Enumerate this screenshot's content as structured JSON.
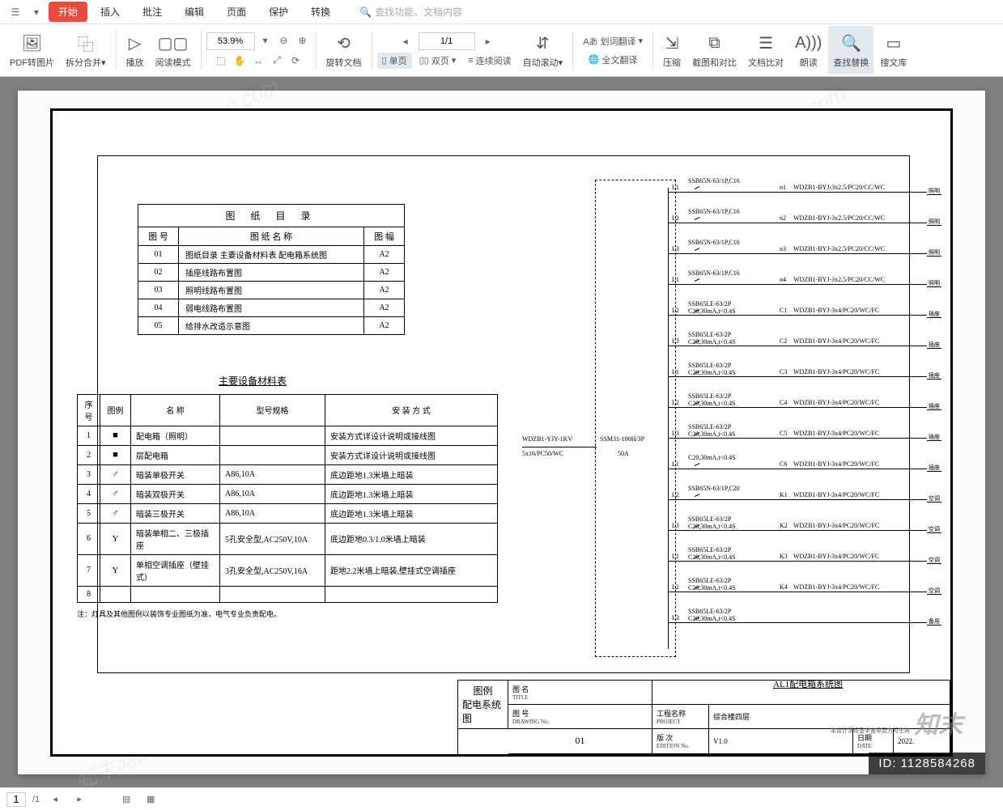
{
  "menubar": {
    "tabs": [
      "开始",
      "插入",
      "批注",
      "编辑",
      "页面",
      "保护",
      "转换"
    ],
    "active_index": 0,
    "search_placeholder": "查找功能、文档内容"
  },
  "toolbar": {
    "pdf_to_image": "PDF转图片",
    "split_merge": "拆分合并",
    "play": "播放",
    "read_mode": "阅读模式",
    "zoom_value": "53.9%",
    "page_indicator": "1/1",
    "rotate": "旋转文档",
    "single_page": "单页",
    "double_page": "双页",
    "continuous": "连续阅读",
    "auto_scroll": "自动滚动",
    "word_translate": "划词翻译",
    "full_translate": "全文翻译",
    "compress": "压缩",
    "screenshot_compare": "截图和对比",
    "text_compare": "文档比对",
    "read_aloud": "朗读",
    "find_replace": "查找替换",
    "doc_library": "搜文库"
  },
  "drawing_index": {
    "title": "图 纸 目 录",
    "headers": {
      "no": "图 号",
      "name": "图 纸 名 称",
      "size": "图 幅"
    },
    "rows": [
      {
        "no": "01",
        "name": "图纸目录 主要设备材料表 配电箱系统图",
        "size": "A2"
      },
      {
        "no": "02",
        "name": "插座线路布置图",
        "size": "A2"
      },
      {
        "no": "03",
        "name": "照明线路布置图",
        "size": "A2"
      },
      {
        "no": "04",
        "name": "弱电线路布置图",
        "size": "A2"
      },
      {
        "no": "05",
        "name": "给排水改造示意图",
        "size": "A2"
      }
    ]
  },
  "equipment": {
    "title": "主要设备材料表",
    "headers": {
      "seq": "序号",
      "legend": "图例",
      "name": "名 称",
      "model": "型号规格",
      "install": "安 装 方 式"
    },
    "rows": [
      {
        "seq": "1",
        "sym": "■",
        "name": "配电箱（照明）",
        "model": "",
        "install": "安装方式详设计说明或接线图"
      },
      {
        "seq": "2",
        "sym": "■",
        "name": "层配电箱",
        "model": "",
        "install": "安装方式详设计说明或接线图"
      },
      {
        "seq": "3",
        "sym": "♂",
        "name": "暗装单极开关",
        "model": "A86,10A",
        "install": "底边距地1.3米墙上暗装"
      },
      {
        "seq": "4",
        "sym": "♂",
        "name": "暗装双极开关",
        "model": "A86,10A",
        "install": "底边距地1.3米墙上暗装"
      },
      {
        "seq": "5",
        "sym": "♂",
        "name": "暗装三极开关",
        "model": "A86,10A",
        "install": "底边距地1.3米墙上暗装"
      },
      {
        "seq": "6",
        "sym": "Y",
        "name": "暗装单相二、三极插座",
        "model": "5孔安全型,AC250V,10A",
        "install": "底边距地0.3/1.0米墙上暗装"
      },
      {
        "seq": "7",
        "sym": "Y",
        "name": "单相空调插座（壁挂式）",
        "model": "3孔安全型,AC250V,16A",
        "install": "距地2.2米墙上暗装,壁挂式空调插座"
      },
      {
        "seq": "8",
        "sym": "",
        "name": "",
        "model": "",
        "install": ""
      }
    ],
    "note": "注：灯具及其他图例以装饰专业图纸为准，电气专业负责配电。"
  },
  "circuit": {
    "feed_top": "WDZB1-YJY-1KV",
    "feed_bottom": "5x16/PC50/WC",
    "main_switch_top": "SSM31-100H/3P",
    "main_switch_bottom": "50A",
    "title": "AL1配电箱系统图",
    "branches": [
      {
        "phase": "L1",
        "breaker": "SSB65N-63/1P,C16",
        "circuit": "n1",
        "cable": "WDZB1-BYJ-3x2.5/PC20/CC/WC",
        "use": "照明"
      },
      {
        "phase": "L2",
        "breaker": "SSB65N-63/1P,C16",
        "circuit": "n2",
        "cable": "WDZB1-BYJ-3x2.5/PC20/CC/WC",
        "use": "照明"
      },
      {
        "phase": "L3",
        "breaker": "SSB65N-63/1P,C16",
        "circuit": "n3",
        "cable": "WDZB1-BYJ-3x2.5/PC20/CC/WC",
        "use": "照明"
      },
      {
        "phase": "L1",
        "breaker": "SSB65N-63/1P,C16",
        "circuit": "n4",
        "cable": "WDZB1-BYJ-3x2.5/PC20/CC/WC",
        "use": "照明"
      },
      {
        "phase": "L2",
        "breaker": "SSB65LE-63/2P C20,30mA,t<0.4S",
        "circuit": "C1",
        "cable": "WDZB1-BYJ-3x4/PC20/WC/FC",
        "use": "插座"
      },
      {
        "phase": "L3",
        "breaker": "SSB65LE-63/2P C20,30mA,t<0.4S",
        "circuit": "C2",
        "cable": "WDZB1-BYJ-3x4/PC20/WC/FC",
        "use": "插座"
      },
      {
        "phase": "L1",
        "breaker": "SSB65LE-63/2P C20,30mA,t<0.4S",
        "circuit": "C3",
        "cable": "WDZB1-BYJ-3x4/PC20/WC/FC",
        "use": "插座"
      },
      {
        "phase": "L2",
        "breaker": "SSB65LE-63/2P C20,30mA,t<0.4S",
        "circuit": "C4",
        "cable": "WDZB1-BYJ-3x4/PC20/WC/FC",
        "use": "插座"
      },
      {
        "phase": "L3",
        "breaker": "SSB65LE-63/2P C20,30mA,t<0.4S",
        "circuit": "C5",
        "cable": "WDZB1-BYJ-3x4/PC20/WC/FC",
        "use": "插座"
      },
      {
        "phase": "L1",
        "breaker": "C20,30mA,t<0.4S",
        "circuit": "C6",
        "cable": "WDZB1-BYJ-3x4/PC20/WC/FC",
        "use": "插座"
      },
      {
        "phase": "L2",
        "breaker": "SSB65N-63/1P,C20",
        "circuit": "K1",
        "cable": "WDZB1-BYJ-3x4/PC20/WC/FC",
        "use": "空调"
      },
      {
        "phase": "L3",
        "breaker": "SSB65LE-63/2P C20,30mA,t<0.4S",
        "circuit": "K2",
        "cable": "WDZB1-BYJ-3x4/PC20/WC/FC",
        "use": "空调"
      },
      {
        "phase": "L1",
        "breaker": "SSB65LE-63/2P C20,30mA,t<0.4S",
        "circuit": "K3",
        "cable": "WDZB1-BYJ-3x4/PC20/WC/FC",
        "use": "空调"
      },
      {
        "phase": "L2",
        "breaker": "SSB65LE-63/2P C20,30mA,t<0.4S",
        "circuit": "K4",
        "cable": "WDZB1-BYJ-3x4/PC20/WC/FC",
        "use": "空调"
      },
      {
        "phase": "L3",
        "breaker": "SSB65LE-63/2P C20,30mA,t<0.4S",
        "circuit": "",
        "cable": "",
        "use": "备用"
      }
    ]
  },
  "titleblock": {
    "title_lbl": "图 名",
    "title_sub": "TITLE",
    "title_val1": "图例",
    "title_val2": "配电系统图",
    "no_lbl": "图 号",
    "no_sub": "DRAWING No.",
    "no_val": "01",
    "proj_lbl": "工程名称",
    "proj_sub": "PROJECT",
    "proj_val": "综合楼四层",
    "ed_lbl": "版 次",
    "ed_sub": "EDITION No.",
    "ed_val": "V1.0",
    "date_lbl": "日期",
    "date_sub": "DATE",
    "date_val": "2022."
  },
  "watermark_text": "知末网www.znzmo.com",
  "zhimo": "知末",
  "id_tag": "ID: 1128584268",
  "copyright": "本设计须经签字盖章后方可生效",
  "statusbar": {
    "page": "/1",
    "page_input": "1"
  },
  "colors": {
    "accent": "#e84c3d",
    "toolbar_bg": "#ffffff",
    "canvas_bg": "#808080",
    "paper": "#fbfbfb",
    "frame": "#000000"
  }
}
